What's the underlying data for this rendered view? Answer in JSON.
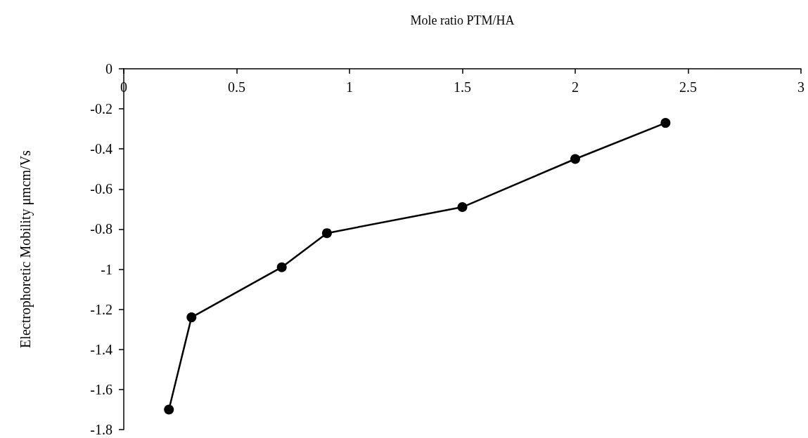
{
  "chart_data": {
    "type": "line",
    "xlabel": "Mole ratio PTM/HA",
    "ylabel": "Electrophoretic Mobility μmcm/Vs",
    "x": [
      0.2,
      0.3,
      0.7,
      0.9,
      1.5,
      2,
      2.4
    ],
    "series": [
      {
        "color": "#000000",
        "values": [
          -1.7,
          -1.24,
          -0.99,
          -0.82,
          -0.69,
          -0.45,
          -0.27
        ]
      }
    ],
    "xlim": [
      0,
      3
    ],
    "xticks": [
      0,
      0.5,
      1,
      1.5,
      2,
      2.5,
      3
    ],
    "ylim": [
      -1.8,
      0
    ],
    "yticks": [
      -1.8,
      -1.6,
      -1.4,
      -1.2,
      -1,
      -0.8,
      -0.6,
      -0.4,
      -0.2,
      0
    ],
    "grid": false,
    "marker": "circle",
    "line_style": "solid"
  }
}
